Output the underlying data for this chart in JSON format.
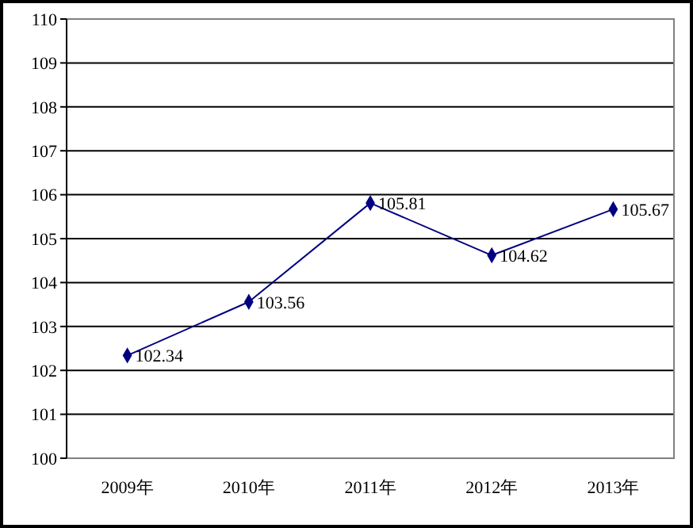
{
  "chart_data": {
    "type": "line",
    "categories": [
      "2009年",
      "2010年",
      "2011年",
      "2012年",
      "2013年"
    ],
    "series": [
      {
        "color": "#000080",
        "values": [
          102.34,
          103.56,
          105.81,
          104.62,
          105.67
        ]
      }
    ],
    "ylim": [
      100,
      110
    ],
    "yticks": [
      100,
      101,
      102,
      103,
      104,
      105,
      106,
      107,
      108,
      109,
      110
    ],
    "grid": "y",
    "marker": "diamond",
    "data_labels": true
  }
}
